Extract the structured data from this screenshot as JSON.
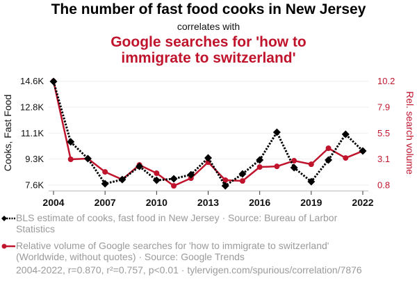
{
  "header": {
    "title": "The number of fast food cooks in New Jersey",
    "subtitle": "correlates with",
    "title2": "Google searches for 'how to immigrate to switzerland'"
  },
  "legend": {
    "series1": "BLS estimate of cooks, fast food in New Jersey · Source: Bureau of Larbor Statistics",
    "series2": "Relative volume of Google searches for 'how to immigrate to switzerland' (Worldwide, without quotes) · Source: Google Trends"
  },
  "footer": "2004-2022, r=0.870, r²=0.757, p<0.01 · tylervigen.com/spurious/correlation/7876",
  "colors": {
    "series1": "#000000",
    "series2": "#c0142d",
    "grid": "#eeeeee",
    "legend_text": "#9a9a9a"
  },
  "chart_data": {
    "type": "line",
    "title": "The number of fast food cooks in New Jersey correlates with Google searches for 'how to immigrate to switzerland'",
    "x": [
      2004,
      2005,
      2006,
      2007,
      2008,
      2009,
      2010,
      2011,
      2012,
      2013,
      2014,
      2015,
      2016,
      2017,
      2018,
      2019,
      2020,
      2021,
      2022
    ],
    "xlabel": "",
    "xticks": [
      "2004",
      "2007",
      "2010",
      "2013",
      "2016",
      "2019",
      "2022"
    ],
    "xticks_values": [
      2004,
      2007,
      2010,
      2013,
      2016,
      2019,
      2022
    ],
    "xlim": [
      2004,
      2022
    ],
    "grid": true,
    "legend_position": "bottom-left",
    "series": [
      {
        "name": "BLS estimate of cooks, fast food in New Jersey",
        "axis": "left",
        "style": "dotted-line-diamond-markers",
        "values": [
          14580,
          10510,
          9380,
          7690,
          7970,
          8860,
          7920,
          8020,
          8300,
          9430,
          7550,
          8350,
          9290,
          11160,
          8770,
          7830,
          9290,
          11020,
          9900
        ]
      },
      {
        "name": "Relative volume of Google searches for 'how to immigrate to switzerland'",
        "axis": "right",
        "style": "solid-line-circle-markers",
        "values": [
          10.2,
          3.13,
          3.19,
          1.99,
          1.3,
          2.62,
          1.87,
          0.73,
          1.42,
          2.87,
          1.24,
          1.17,
          2.43,
          2.49,
          3.0,
          2.68,
          4.13,
          3.25,
          3.88
        ]
      }
    ],
    "y_left": {
      "label": "Cooks, Fast Food",
      "ticks": [
        "14.6K",
        "12.8K",
        "11.1K",
        "9.3K",
        "7.6K"
      ],
      "ylim": [
        7600,
        14600
      ]
    },
    "y_right": {
      "label": "Rel. search volume",
      "ticks": [
        "10.2",
        "7.9",
        "5.5",
        "3.1",
        "0.8"
      ],
      "ylim": [
        0.8,
        10.2
      ]
    }
  }
}
